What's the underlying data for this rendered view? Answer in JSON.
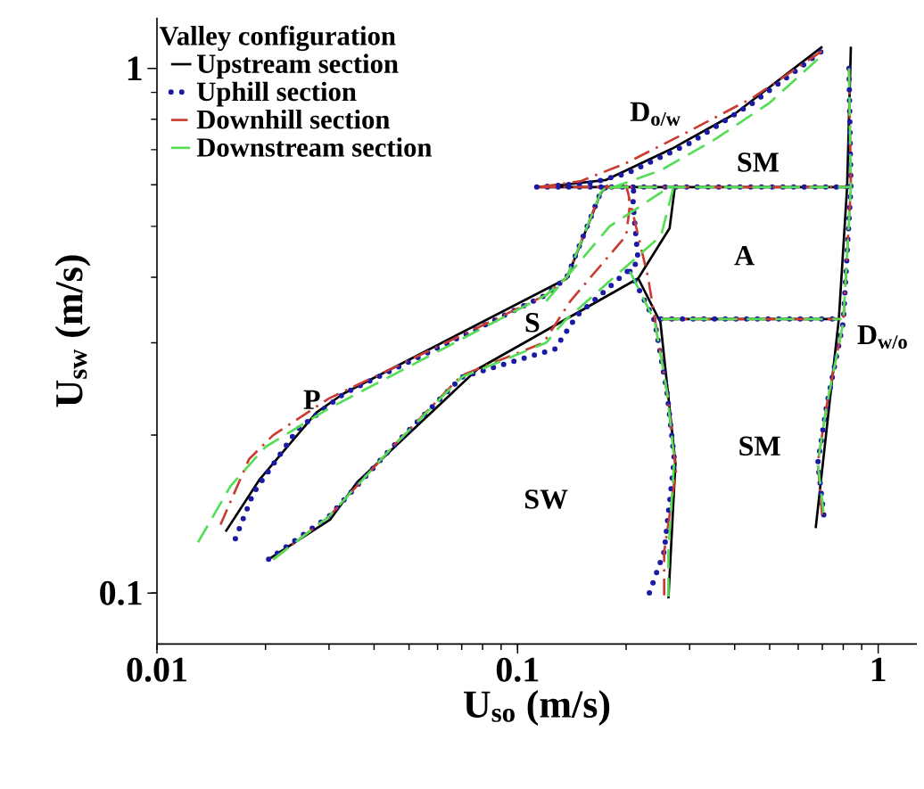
{
  "chart_data": {
    "type": "line",
    "xlabel": "U$_{so}$ (m/s)",
    "ylabel": "U$_{sw}$ (m/s)",
    "legend_title": "Valley configuration",
    "legend": "top left",
    "log": "xy",
    "grid": false,
    "xlim": [
      0.01,
      1.28
    ],
    "ylim": [
      0.08,
      1.25
    ],
    "xticks": [
      0.01,
      0.1,
      1
    ],
    "yticks": [
      0.1,
      1
    ],
    "series": [
      {
        "name": "Upstream section",
        "color": "#000000",
        "line_style": "solid",
        "x": [
          0.113,
          0.134,
          0.176,
          0.268,
          0.4,
          0.7,
          null,
          0.113,
          0.82,
          null,
          0.84,
          0.82,
          0.778,
          0.671,
          null,
          0.249,
          0.778,
          null,
          0.0155,
          0.0193,
          0.0277,
          0.0329,
          0.137,
          0.17,
          0.178,
          null,
          0.0204,
          0.0302,
          0.036,
          0.0773,
          0.216,
          0.264,
          0.273,
          null,
          0.216,
          0.249,
          0.274,
          0.262
        ],
        "values": [
          0.594,
          0.6,
          0.613,
          0.703,
          0.819,
          1.1,
          null,
          0.594,
          0.594,
          null,
          1.1,
          0.594,
          0.333,
          0.133,
          null,
          0.333,
          0.333,
          null,
          0.131,
          0.165,
          0.221,
          0.24,
          0.398,
          0.578,
          0.599,
          null,
          0.116,
          0.138,
          0.163,
          0.267,
          0.398,
          0.496,
          0.594,
          null,
          0.398,
          0.328,
          0.177,
          0.0977
        ]
      },
      {
        "name": "Uphill section",
        "color": "#1a1aa6",
        "line_style": "dotted",
        "x": [
          0.113,
          0.16,
          0.2,
          0.3,
          0.45,
          0.7,
          null,
          0.113,
          0.84,
          null,
          0.83,
          0.84,
          0.8,
          0.72,
          0.68,
          0.71,
          null,
          0.25,
          0.79,
          null,
          0.0165,
          0.0185,
          0.0245,
          0.033,
          0.12,
          0.137,
          0.17,
          0.178,
          null,
          0.0204,
          0.03,
          0.045,
          0.07,
          0.127,
          0.146,
          0.216,
          0.209,
          0.21,
          null,
          0.205,
          0.24,
          0.26,
          0.272,
          0.255,
          0.23
        ],
        "values": [
          0.594,
          0.605,
          0.63,
          0.72,
          0.86,
          1.08,
          null,
          0.594,
          0.594,
          null,
          1.0,
          0.594,
          0.328,
          0.228,
          0.177,
          0.137,
          null,
          0.333,
          0.333,
          null,
          0.127,
          0.155,
          0.205,
          0.24,
          0.37,
          0.4,
          0.58,
          0.599,
          null,
          0.116,
          0.14,
          0.19,
          0.258,
          0.292,
          0.338,
          0.428,
          0.553,
          0.6,
          null,
          0.41,
          0.33,
          0.24,
          0.18,
          0.12,
          0.0985
        ]
      },
      {
        "name": "Downhill section",
        "color": "#c83c32",
        "line_style": "dashdot",
        "x": [
          0.115,
          0.15,
          0.2,
          0.3,
          0.45,
          0.7,
          null,
          0.115,
          0.84,
          null,
          0.83,
          0.84,
          0.8,
          0.72,
          0.68,
          0.7,
          null,
          0.25,
          0.79,
          null,
          0.015,
          0.018,
          0.021,
          0.03,
          0.12,
          0.137,
          0.17,
          0.178,
          null,
          0.021,
          0.03,
          0.045,
          0.07,
          0.118,
          0.14,
          0.2,
          0.205,
          0.2,
          null,
          0.2,
          0.23,
          0.26,
          0.275,
          0.255,
          0.255
        ],
        "values": [
          0.594,
          0.61,
          0.66,
          0.76,
          0.88,
          1.08,
          null,
          0.594,
          0.594,
          null,
          1.0,
          0.594,
          0.328,
          0.228,
          0.177,
          0.14,
          null,
          0.333,
          0.333,
          null,
          0.135,
          0.18,
          0.2,
          0.235,
          0.37,
          0.4,
          0.58,
          0.599,
          null,
          0.116,
          0.14,
          0.19,
          0.26,
          0.3,
          0.36,
          0.48,
          0.55,
          0.6,
          null,
          0.6,
          0.4,
          0.24,
          0.17,
          0.12,
          0.0985
        ]
      },
      {
        "name": "Downstream section",
        "color": "#55dd55",
        "line_style": "dashed",
        "x": [
          0.18,
          0.25,
          0.35,
          0.5,
          0.7,
          null,
          0.18,
          0.84,
          null,
          0.83,
          0.84,
          0.8,
          0.72,
          0.68,
          0.71,
          null,
          0.25,
          0.79,
          null,
          0.013,
          0.016,
          0.02,
          0.03,
          0.12,
          0.137,
          0.17,
          0.178,
          null,
          0.021,
          0.03,
          0.045,
          0.07,
          0.12,
          0.135,
          0.25,
          0.27,
          null,
          0.12,
          0.18,
          0.25,
          0.26,
          null,
          0.205,
          0.24,
          0.26,
          0.272,
          0.262,
          0.262
        ],
        "values": [
          0.59,
          0.64,
          0.73,
          0.86,
          1.06,
          null,
          0.594,
          0.594,
          null,
          1.0,
          0.594,
          0.328,
          0.228,
          0.177,
          0.137,
          null,
          0.333,
          0.333,
          null,
          0.125,
          0.16,
          0.19,
          0.225,
          0.37,
          0.4,
          0.58,
          0.599,
          null,
          0.116,
          0.14,
          0.19,
          0.258,
          0.3,
          0.33,
          0.48,
          0.59,
          null,
          0.36,
          0.5,
          0.58,
          0.594,
          null,
          0.41,
          0.33,
          0.24,
          0.18,
          0.12,
          0.0985
        ]
      }
    ],
    "annotations": [
      "P",
      "S",
      "SW",
      "SM",
      "A",
      "SM",
      "D$_{o/w}$",
      "D$_{w/o}$"
    ]
  }
}
